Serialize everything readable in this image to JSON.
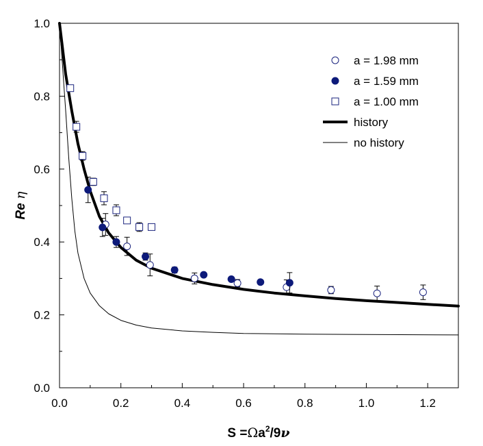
{
  "chart_data": {
    "type": "scatter",
    "xlabel": {
      "main": "S =",
      "symbol": "Ω",
      "a": "a",
      "exp": "2",
      "tail": "/9",
      "nu": "ν"
    },
    "ylabel": {
      "re": "Re",
      "eta": "η"
    },
    "xlim": [
      0.0,
      1.3
    ],
    "ylim": [
      0.0,
      1.0
    ],
    "x_ticks": [
      "0.0",
      "0.2",
      "0.4",
      "0.6",
      "0.8",
      "1.0",
      "1.2"
    ],
    "y_ticks": [
      "0.0",
      "0.2",
      "0.4",
      "0.6",
      "0.8",
      "1.0"
    ],
    "legend_position": "top-right",
    "grid": false,
    "series": [
      {
        "name": "a = 1.98 mm",
        "marker": "circle-open",
        "color": "#1a237e",
        "points": [
          {
            "x": 0.15,
            "y": 0.448,
            "err": 0.03
          },
          {
            "x": 0.22,
            "y": 0.388,
            "err": 0.025
          },
          {
            "x": 0.295,
            "y": 0.337,
            "err": 0.03
          },
          {
            "x": 0.44,
            "y": 0.3,
            "err": 0.015
          },
          {
            "x": 0.58,
            "y": 0.287,
            "err": 0.01
          },
          {
            "x": 0.74,
            "y": 0.276,
            "err": 0.02
          },
          {
            "x": 0.885,
            "y": 0.268,
            "err": 0.01
          },
          {
            "x": 1.035,
            "y": 0.259,
            "err": 0.02
          },
          {
            "x": 1.185,
            "y": 0.262,
            "err": 0.02
          }
        ]
      },
      {
        "name": "a = 1.59 mm",
        "marker": "circle-filled",
        "color": "#0d1a7a",
        "points": [
          {
            "x": 0.093,
            "y": 0.543,
            "err": 0.035
          },
          {
            "x": 0.14,
            "y": 0.44,
            "err": 0.025
          },
          {
            "x": 0.185,
            "y": 0.4,
            "err": 0.015
          },
          {
            "x": 0.28,
            "y": 0.36,
            "err": 0.01
          },
          {
            "x": 0.375,
            "y": 0.323,
            "err": 0.008
          },
          {
            "x": 0.47,
            "y": 0.31,
            "err": 0.006
          },
          {
            "x": 0.56,
            "y": 0.298,
            "err": 0.006
          },
          {
            "x": 0.655,
            "y": 0.29,
            "err": 0.006
          },
          {
            "x": 0.75,
            "y": 0.288,
            "err": 0.028
          }
        ]
      },
      {
        "name": "a = 1.00 mm",
        "marker": "square-open",
        "color": "#1a237e",
        "points": [
          {
            "x": 0.035,
            "y": 0.822,
            "err": 0.008
          },
          {
            "x": 0.055,
            "y": 0.716,
            "err": 0.015
          },
          {
            "x": 0.075,
            "y": 0.636,
            "err": 0.012
          },
          {
            "x": 0.11,
            "y": 0.565,
            "err": 0.01
          },
          {
            "x": 0.145,
            "y": 0.52,
            "err": 0.018
          },
          {
            "x": 0.185,
            "y": 0.487,
            "err": 0.015
          },
          {
            "x": 0.22,
            "y": 0.459,
            "err": 0.008
          },
          {
            "x": 0.26,
            "y": 0.441,
            "err": 0.012
          },
          {
            "x": 0.3,
            "y": 0.441,
            "err": 0.008
          }
        ]
      },
      {
        "name": "history",
        "marker": "line-thick",
        "color": "#000000",
        "points": [
          {
            "x": 0.0,
            "y": 1.0
          },
          {
            "x": 0.01,
            "y": 0.93
          },
          {
            "x": 0.02,
            "y": 0.86
          },
          {
            "x": 0.04,
            "y": 0.76
          },
          {
            "x": 0.06,
            "y": 0.67
          },
          {
            "x": 0.08,
            "y": 0.6
          },
          {
            "x": 0.1,
            "y": 0.54
          },
          {
            "x": 0.13,
            "y": 0.47
          },
          {
            "x": 0.16,
            "y": 0.425
          },
          {
            "x": 0.2,
            "y": 0.385
          },
          {
            "x": 0.25,
            "y": 0.35
          },
          {
            "x": 0.3,
            "y": 0.328
          },
          {
            "x": 0.4,
            "y": 0.3
          },
          {
            "x": 0.5,
            "y": 0.283
          },
          {
            "x": 0.6,
            "y": 0.27
          },
          {
            "x": 0.7,
            "y": 0.26
          },
          {
            "x": 0.8,
            "y": 0.252
          },
          {
            "x": 0.9,
            "y": 0.245
          },
          {
            "x": 1.0,
            "y": 0.239
          },
          {
            "x": 1.1,
            "y": 0.234
          },
          {
            "x": 1.2,
            "y": 0.229
          },
          {
            "x": 1.3,
            "y": 0.224
          }
        ]
      },
      {
        "name": "no history",
        "marker": "line-thin",
        "color": "#000000",
        "points": [
          {
            "x": 0.0,
            "y": 1.0
          },
          {
            "x": 0.01,
            "y": 0.88
          },
          {
            "x": 0.02,
            "y": 0.76
          },
          {
            "x": 0.03,
            "y": 0.63
          },
          {
            "x": 0.04,
            "y": 0.52
          },
          {
            "x": 0.05,
            "y": 0.43
          },
          {
            "x": 0.06,
            "y": 0.37
          },
          {
            "x": 0.08,
            "y": 0.3
          },
          {
            "x": 0.1,
            "y": 0.26
          },
          {
            "x": 0.13,
            "y": 0.225
          },
          {
            "x": 0.16,
            "y": 0.203
          },
          {
            "x": 0.2,
            "y": 0.185
          },
          {
            "x": 0.25,
            "y": 0.172
          },
          {
            "x": 0.3,
            "y": 0.164
          },
          {
            "x": 0.4,
            "y": 0.156
          },
          {
            "x": 0.5,
            "y": 0.152
          },
          {
            "x": 0.6,
            "y": 0.149
          },
          {
            "x": 0.8,
            "y": 0.147
          },
          {
            "x": 1.0,
            "y": 0.146
          },
          {
            "x": 1.3,
            "y": 0.145
          }
        ]
      }
    ]
  }
}
